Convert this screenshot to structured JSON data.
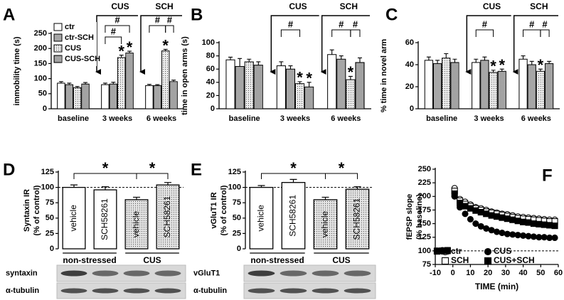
{
  "chart_data": [
    {
      "type": "bar",
      "panel": "A",
      "ylabel": "immobility time (s)",
      "categories": [
        "baseline",
        "3 weeks",
        "6 weeks"
      ],
      "treatments": [
        "CUS",
        "SCH"
      ],
      "hash_label": "#",
      "star_label": "*",
      "legend": true,
      "ylim": [
        0,
        250
      ],
      "yticks": [
        0,
        50,
        100,
        150,
        200,
        250
      ],
      "series": [
        {
          "name": "ctr",
          "color": "#ffffff",
          "values": [
            85,
            80,
            77
          ],
          "errors": [
            5,
            5,
            4
          ],
          "significant": [
            false,
            false,
            false
          ]
        },
        {
          "name": "ctr-SCH",
          "color": "#a6a6a6",
          "values": [
            80,
            82,
            77
          ],
          "errors": [
            5,
            6,
            3
          ],
          "significant": [
            false,
            false,
            false
          ]
        },
        {
          "name": "CUS",
          "color": "#ececec",
          "pattern": "dots",
          "values": [
            70,
            170,
            192
          ],
          "errors": [
            4,
            8,
            5
          ],
          "significant": [
            false,
            true,
            true
          ]
        },
        {
          "name": "CUS-SCH",
          "color": "#cfcfcf",
          "pattern": "dense-dots",
          "values": [
            82,
            185,
            90
          ],
          "errors": [
            5,
            6,
            5
          ],
          "significant": [
            false,
            true,
            false
          ]
        }
      ]
    },
    {
      "type": "bar",
      "panel": "B",
      "ylabel": "time in open arms (s)",
      "categories": [
        "baseline",
        "3 weeks",
        "6 weeks"
      ],
      "treatments": [
        "CUS",
        "SCH"
      ],
      "hash_label": "#",
      "star_label": "*",
      "legend": false,
      "ylim": [
        0,
        100
      ],
      "yticks": [
        0,
        20,
        40,
        60,
        80,
        100
      ],
      "series": [
        {
          "name": "ctr",
          "color": "#ffffff",
          "values": [
            74,
            65,
            82
          ],
          "errors": [
            4,
            6,
            7
          ],
          "significant": [
            false,
            false,
            false
          ]
        },
        {
          "name": "ctr-SCH",
          "color": "#a6a6a6",
          "values": [
            64,
            60,
            75
          ],
          "errors": [
            12,
            5,
            5
          ],
          "significant": [
            false,
            false,
            false
          ]
        },
        {
          "name": "CUS",
          "color": "#ececec",
          "pattern": "dots",
          "values": [
            71,
            38,
            44
          ],
          "errors": [
            4,
            3,
            5
          ],
          "significant": [
            false,
            true,
            true
          ]
        },
        {
          "name": "CUS-SCH",
          "color": "#cfcfcf",
          "pattern": "dense-dots",
          "values": [
            66,
            33,
            70
          ],
          "errors": [
            5,
            7,
            7
          ],
          "significant": [
            false,
            true,
            false
          ]
        }
      ]
    },
    {
      "type": "bar",
      "panel": "C",
      "ylabel": "% time in novel arm",
      "categories": [
        "baseline",
        "3 weeks",
        "6 weeks"
      ],
      "treatments": [
        "CUS",
        "SCH"
      ],
      "hash_label": "#",
      "star_label": "*",
      "legend": false,
      "ylim": [
        0,
        60
      ],
      "yticks": [
        0,
        20,
        40,
        60
      ],
      "series": [
        {
          "name": "ctr",
          "color": "#ffffff",
          "values": [
            44,
            42,
            45
          ],
          "errors": [
            3,
            3,
            3
          ],
          "significant": [
            false,
            false,
            false
          ]
        },
        {
          "name": "ctr-SCH",
          "color": "#a6a6a6",
          "values": [
            41,
            44,
            40
          ],
          "errors": [
            3,
            3,
            3
          ],
          "significant": [
            false,
            false,
            false
          ]
        },
        {
          "name": "CUS",
          "color": "#ececec",
          "pattern": "dots",
          "values": [
            46,
            33,
            34
          ],
          "errors": [
            4,
            2,
            2
          ],
          "significant": [
            false,
            true,
            true
          ]
        },
        {
          "name": "CUS-SCH",
          "color": "#cfcfcf",
          "pattern": "dense-dots",
          "values": [
            42,
            34,
            41
          ],
          "errors": [
            3,
            2,
            2
          ],
          "significant": [
            false,
            true,
            false
          ]
        }
      ]
    },
    {
      "type": "column",
      "panel": "D",
      "ylabel": [
        "Syntaxin IR",
        "(% of control)"
      ],
      "categories": [
        "vehicle",
        "SCH58261",
        "vehicle",
        "SCH58261"
      ],
      "groups": [
        "non-stressed",
        "CUS"
      ],
      "values": [
        100,
        96,
        80,
        104
      ],
      "errors": [
        4,
        5,
        4,
        4
      ],
      "colors": [
        "#ffffff",
        "#ffffff",
        "#e4e4e4",
        "#e4e4e4"
      ],
      "patterned": [
        false,
        false,
        true,
        true
      ],
      "star_label": "*",
      "reference_line": 100,
      "ylim": [
        0,
        125
      ],
      "yticks": [
        0,
        25,
        50,
        75,
        100,
        125
      ],
      "blot_labels": [
        "syntaxin",
        "α-tubulin"
      ]
    },
    {
      "type": "column",
      "panel": "E",
      "ylabel": [
        "vGluT1 IR",
        "(% of control)"
      ],
      "categories": [
        "vehicle",
        "SCH58261",
        "vehicle",
        "SCH58261"
      ],
      "groups": [
        "non-stressed",
        "CUS"
      ],
      "values": [
        100,
        108,
        80,
        97
      ],
      "errors": [
        3,
        5,
        4,
        4
      ],
      "colors": [
        "#ffffff",
        "#ffffff",
        "#e4e4e4",
        "#e4e4e4"
      ],
      "patterned": [
        false,
        false,
        true,
        true
      ],
      "star_label": "*",
      "reference_line": 100,
      "ylim": [
        0,
        125
      ],
      "yticks": [
        0,
        25,
        50,
        75,
        100,
        125
      ],
      "blot_labels": [
        "vGluT1",
        "α-tubulin"
      ]
    },
    {
      "type": "scatter",
      "panel": "F",
      "ylabel": [
        "fEPSP slope",
        "(% baseline)"
      ],
      "xlabel": "TIME (min)",
      "reference_line": 100,
      "xlim": [
        -10,
        60
      ],
      "xticks": [
        -10,
        0,
        10,
        20,
        30,
        40,
        50,
        60
      ],
      "ylim": [
        75,
        250
      ],
      "yticks": [
        75,
        100,
        125,
        150,
        175,
        200,
        225,
        250
      ],
      "x": [
        -9,
        -6,
        -3,
        1,
        4,
        7,
        10,
        13,
        16,
        19,
        22,
        25,
        28,
        31,
        34,
        37,
        40,
        43,
        46,
        49,
        52,
        55,
        58
      ],
      "series": [
        {
          "name": "ctr",
          "color": "#000000",
          "marker": "circle",
          "filled": false,
          "values": [
            100,
            101,
            99,
            215,
            195,
            190,
            185,
            180,
            178,
            175,
            172,
            170,
            168,
            167,
            165,
            163,
            162,
            161,
            160,
            159,
            158,
            157,
            157
          ]
        },
        {
          "name": "SCH",
          "color": "#000000",
          "marker": "square",
          "filled": false,
          "values": [
            100,
            100,
            101,
            210,
            192,
            186,
            182,
            178,
            175,
            172,
            170,
            168,
            166,
            164,
            162,
            160,
            159,
            158,
            157,
            156,
            155,
            154,
            154
          ]
        },
        {
          "name": "CUS",
          "color": "#000000",
          "marker": "circle",
          "filled": true,
          "values": [
            100,
            99,
            101,
            200,
            180,
            168,
            158,
            150,
            145,
            141,
            138,
            135,
            133,
            131,
            130,
            129,
            128,
            127,
            126,
            125,
            125,
            124,
            124
          ]
        },
        {
          "name": "CUS+SCH",
          "color": "#000000",
          "marker": "square",
          "filled": true,
          "values": [
            99,
            100,
            100,
            205,
            188,
            182,
            178,
            174,
            171,
            168,
            165,
            163,
            161,
            159,
            157,
            155,
            153,
            152,
            150,
            149,
            148,
            147,
            146
          ]
        }
      ]
    }
  ]
}
